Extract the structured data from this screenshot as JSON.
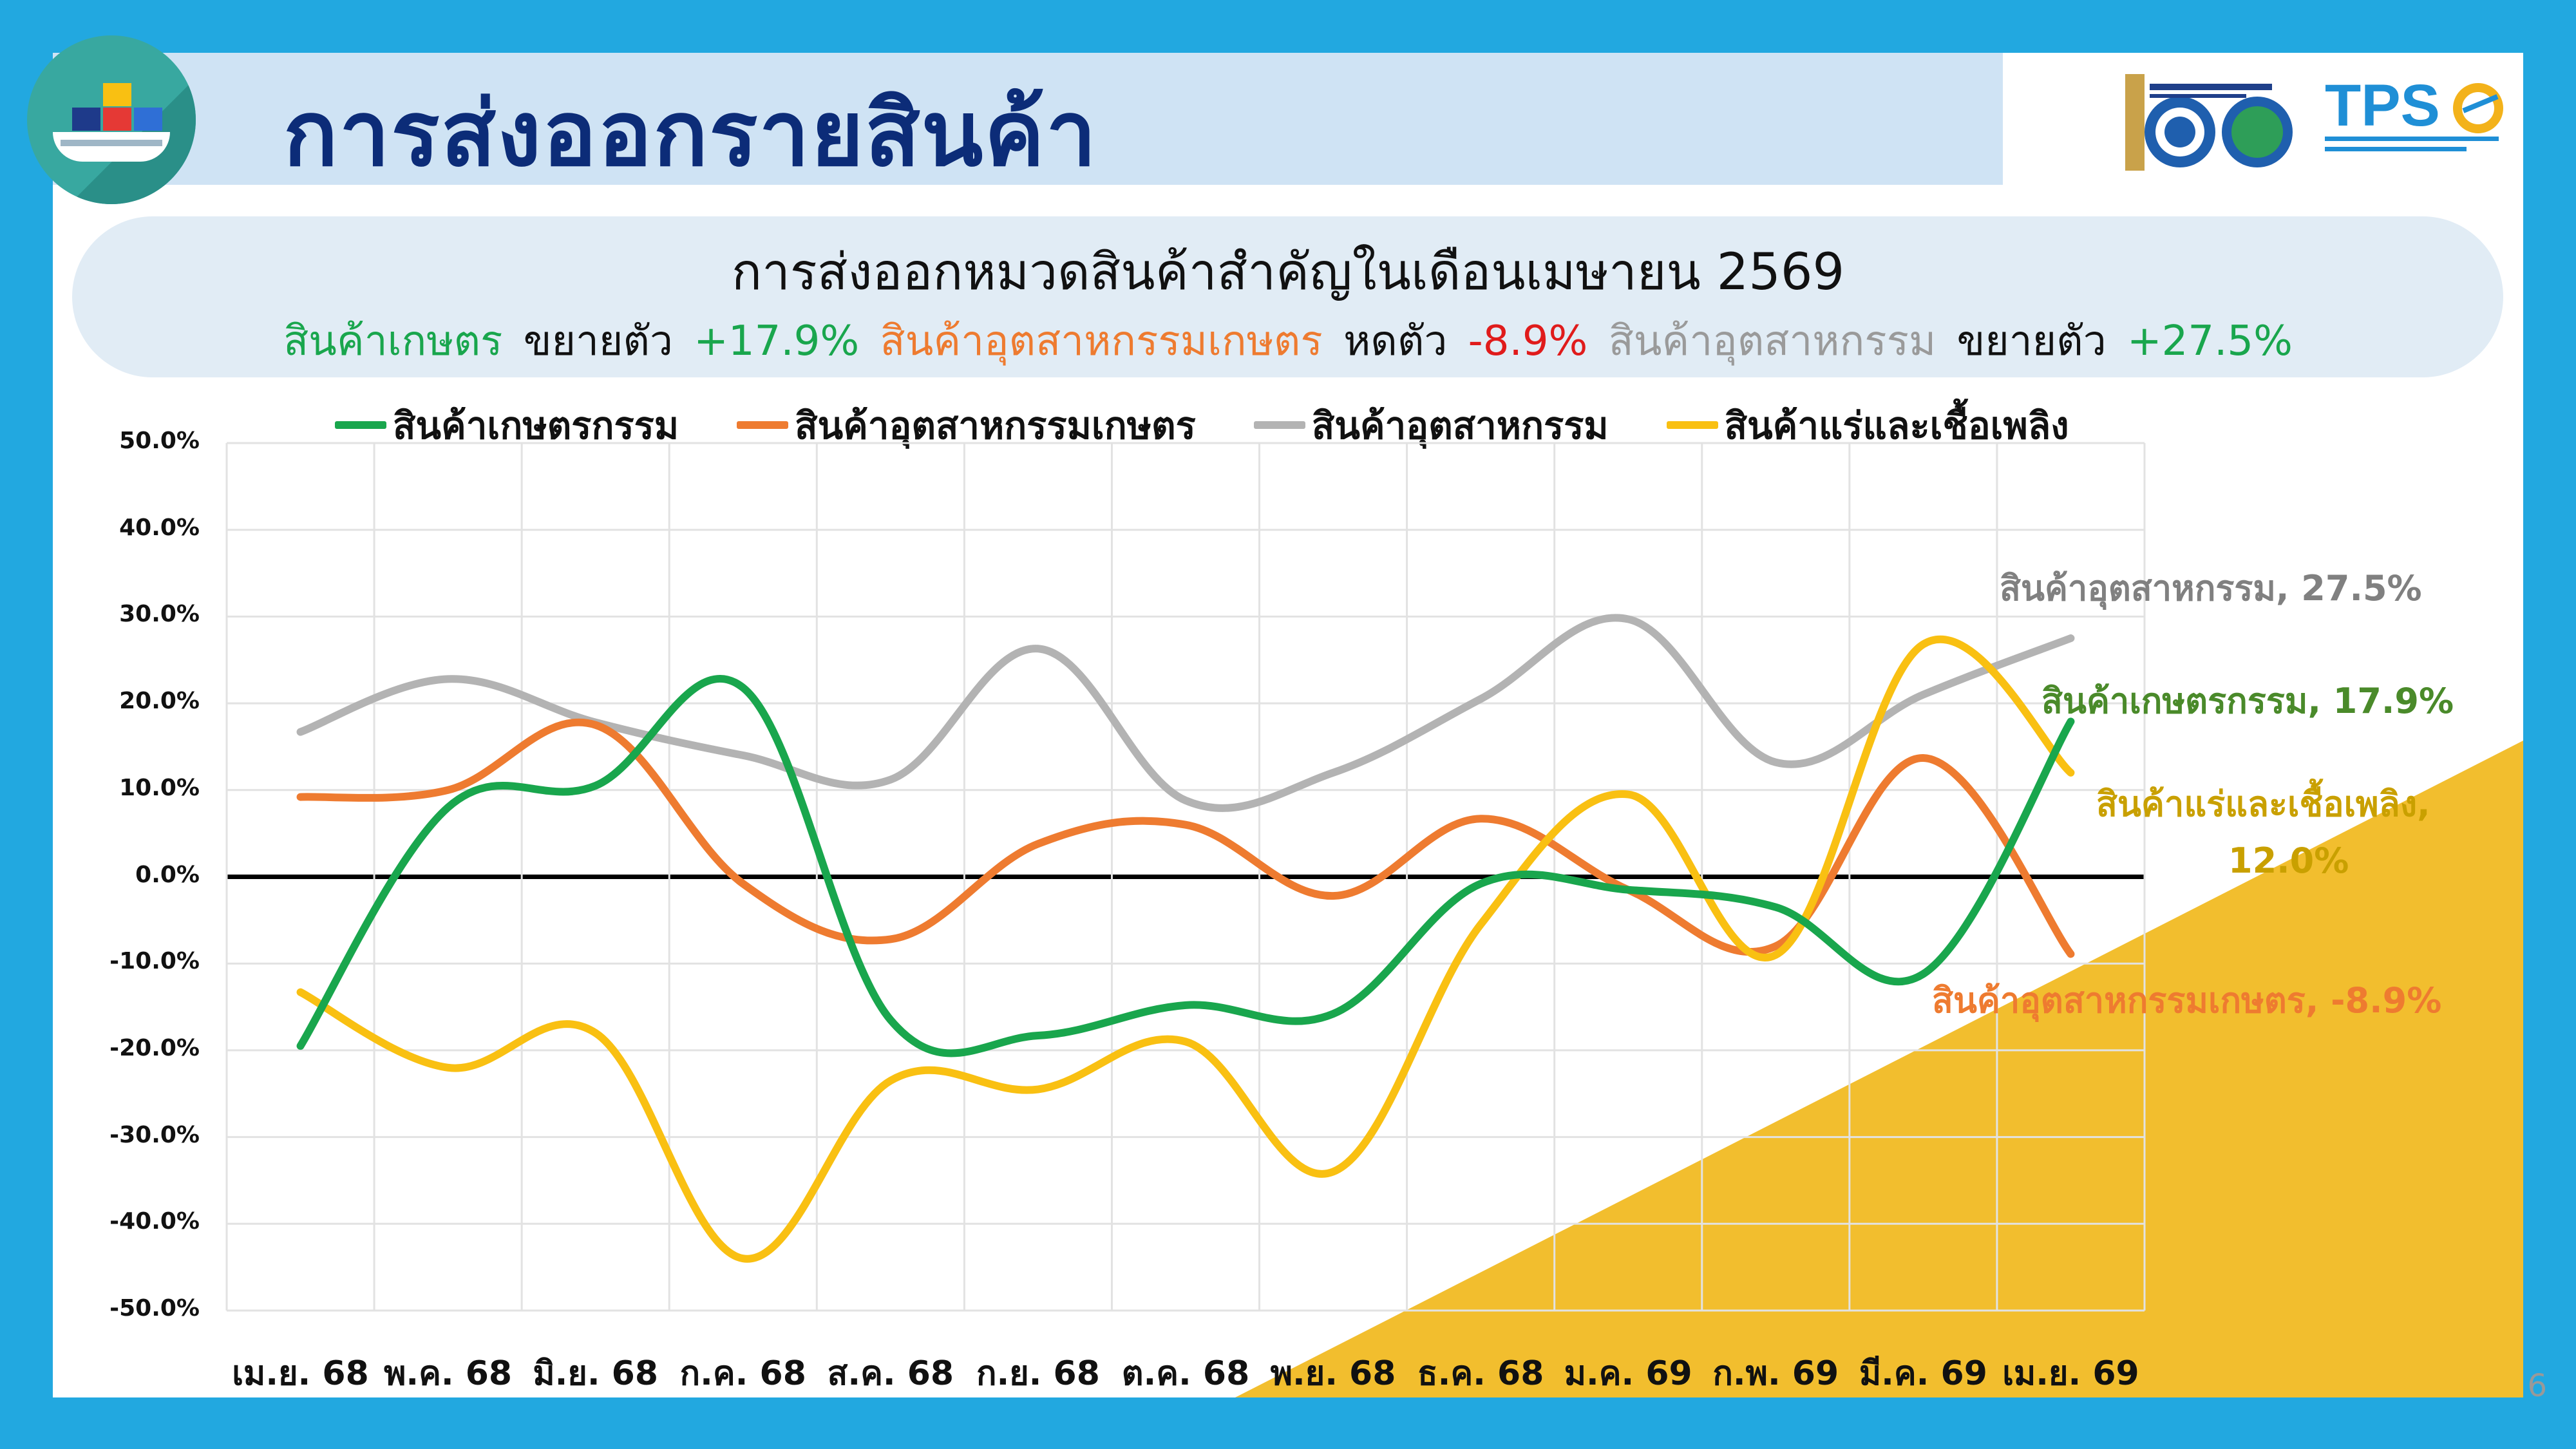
{
  "header": {
    "title": "การส่งออกรายสินค้า",
    "page_number": "6"
  },
  "colors": {
    "green": "#19a64d",
    "orange": "#ee7b30",
    "gray": "#b3b3b3",
    "yellow": "#f9c012",
    "green_label": "#4a8a2a",
    "gray_label": "#808080",
    "yellow_label": "#c9a000",
    "orange_label": "#ee7b30",
    "negative": "#e01b1b"
  },
  "summary": {
    "agri_label": "สินค้าเกษตร",
    "agri_verb": "ขยายตัว",
    "agri_value": "+17.9%",
    "agroind_label": "สินค้าอุตสาหกรรมเกษตร",
    "agroind_verb": "หดตัว",
    "agroind_value": "-8.9%",
    "ind_label": "สินค้าอุตสาหกรรม",
    "ind_verb": "ขยายตัว",
    "ind_value": "+27.5%"
  },
  "end_labels": {
    "industrial": "สินค้าอุตสาหกรรม, 27.5%",
    "agriculture": "สินค้าเกษตรกรรม, 17.9%",
    "mining_line1": "สินค้าแร่และเชื้อเพลิง,",
    "mining_line2": "12.0%",
    "agro_industrial": "สินค้าอุตสาหกรรมเกษตร, -8.9%"
  },
  "chart_data": {
    "type": "line",
    "title": "การส่งออกหมวดสินค้าสำคัญในเดือนเมษายน 2569",
    "categories": [
      "เม.ย. 68",
      "พ.ค. 68",
      "มิ.ย. 68",
      "ก.ค. 68",
      "ส.ค. 68",
      "ก.ย. 68",
      "ต.ค. 68",
      "พ.ย. 68",
      "ธ.ค. 68",
      "ม.ค. 69",
      "ก.พ. 69",
      "มี.ค. 69",
      "เม.ย. 69"
    ],
    "y_ticks": [
      "50.0%",
      "40.0%",
      "30.0%",
      "20.0%",
      "10.0%",
      "0.0%",
      "-10.0%",
      "-20.0%",
      "-30.0%",
      "-40.0%",
      "-50.0%"
    ],
    "ylim": [
      -50,
      50
    ],
    "grid": true,
    "legend_position": "top",
    "series": [
      {
        "name": "สินค้าเกษตรกรรม",
        "color": "#19a64d",
        "values": [
          -19.5,
          8.0,
          10.5,
          21.8,
          -16.5,
          -18.3,
          -14.8,
          -15.8,
          -0.8,
          -1.5,
          -3.5,
          -11.2,
          17.9
        ]
      },
      {
        "name": "สินค้าอุตสาหกรรมเกษตร",
        "color": "#ee7b30",
        "values": [
          9.2,
          10.0,
          17.5,
          -0.8,
          -7.2,
          3.8,
          6.0,
          -2.2,
          6.7,
          -1.5,
          -8.0,
          13.7,
          -8.9
        ]
      },
      {
        "name": "สินค้าอุตสาหกรรม",
        "color": "#b3b3b3",
        "values": [
          16.7,
          22.8,
          17.8,
          14.0,
          11.2,
          26.3,
          8.8,
          12.0,
          20.5,
          29.7,
          13.2,
          21.0,
          27.5
        ]
      },
      {
        "name": "สินค้าแร่และเชื้อเพลิง",
        "color": "#f9c012",
        "values": [
          -13.3,
          -22.0,
          -18.0,
          -44.0,
          -23.5,
          -24.5,
          -19.0,
          -34.0,
          -5.5,
          9.5,
          -9.0,
          26.8,
          12.0
        ]
      }
    ]
  }
}
